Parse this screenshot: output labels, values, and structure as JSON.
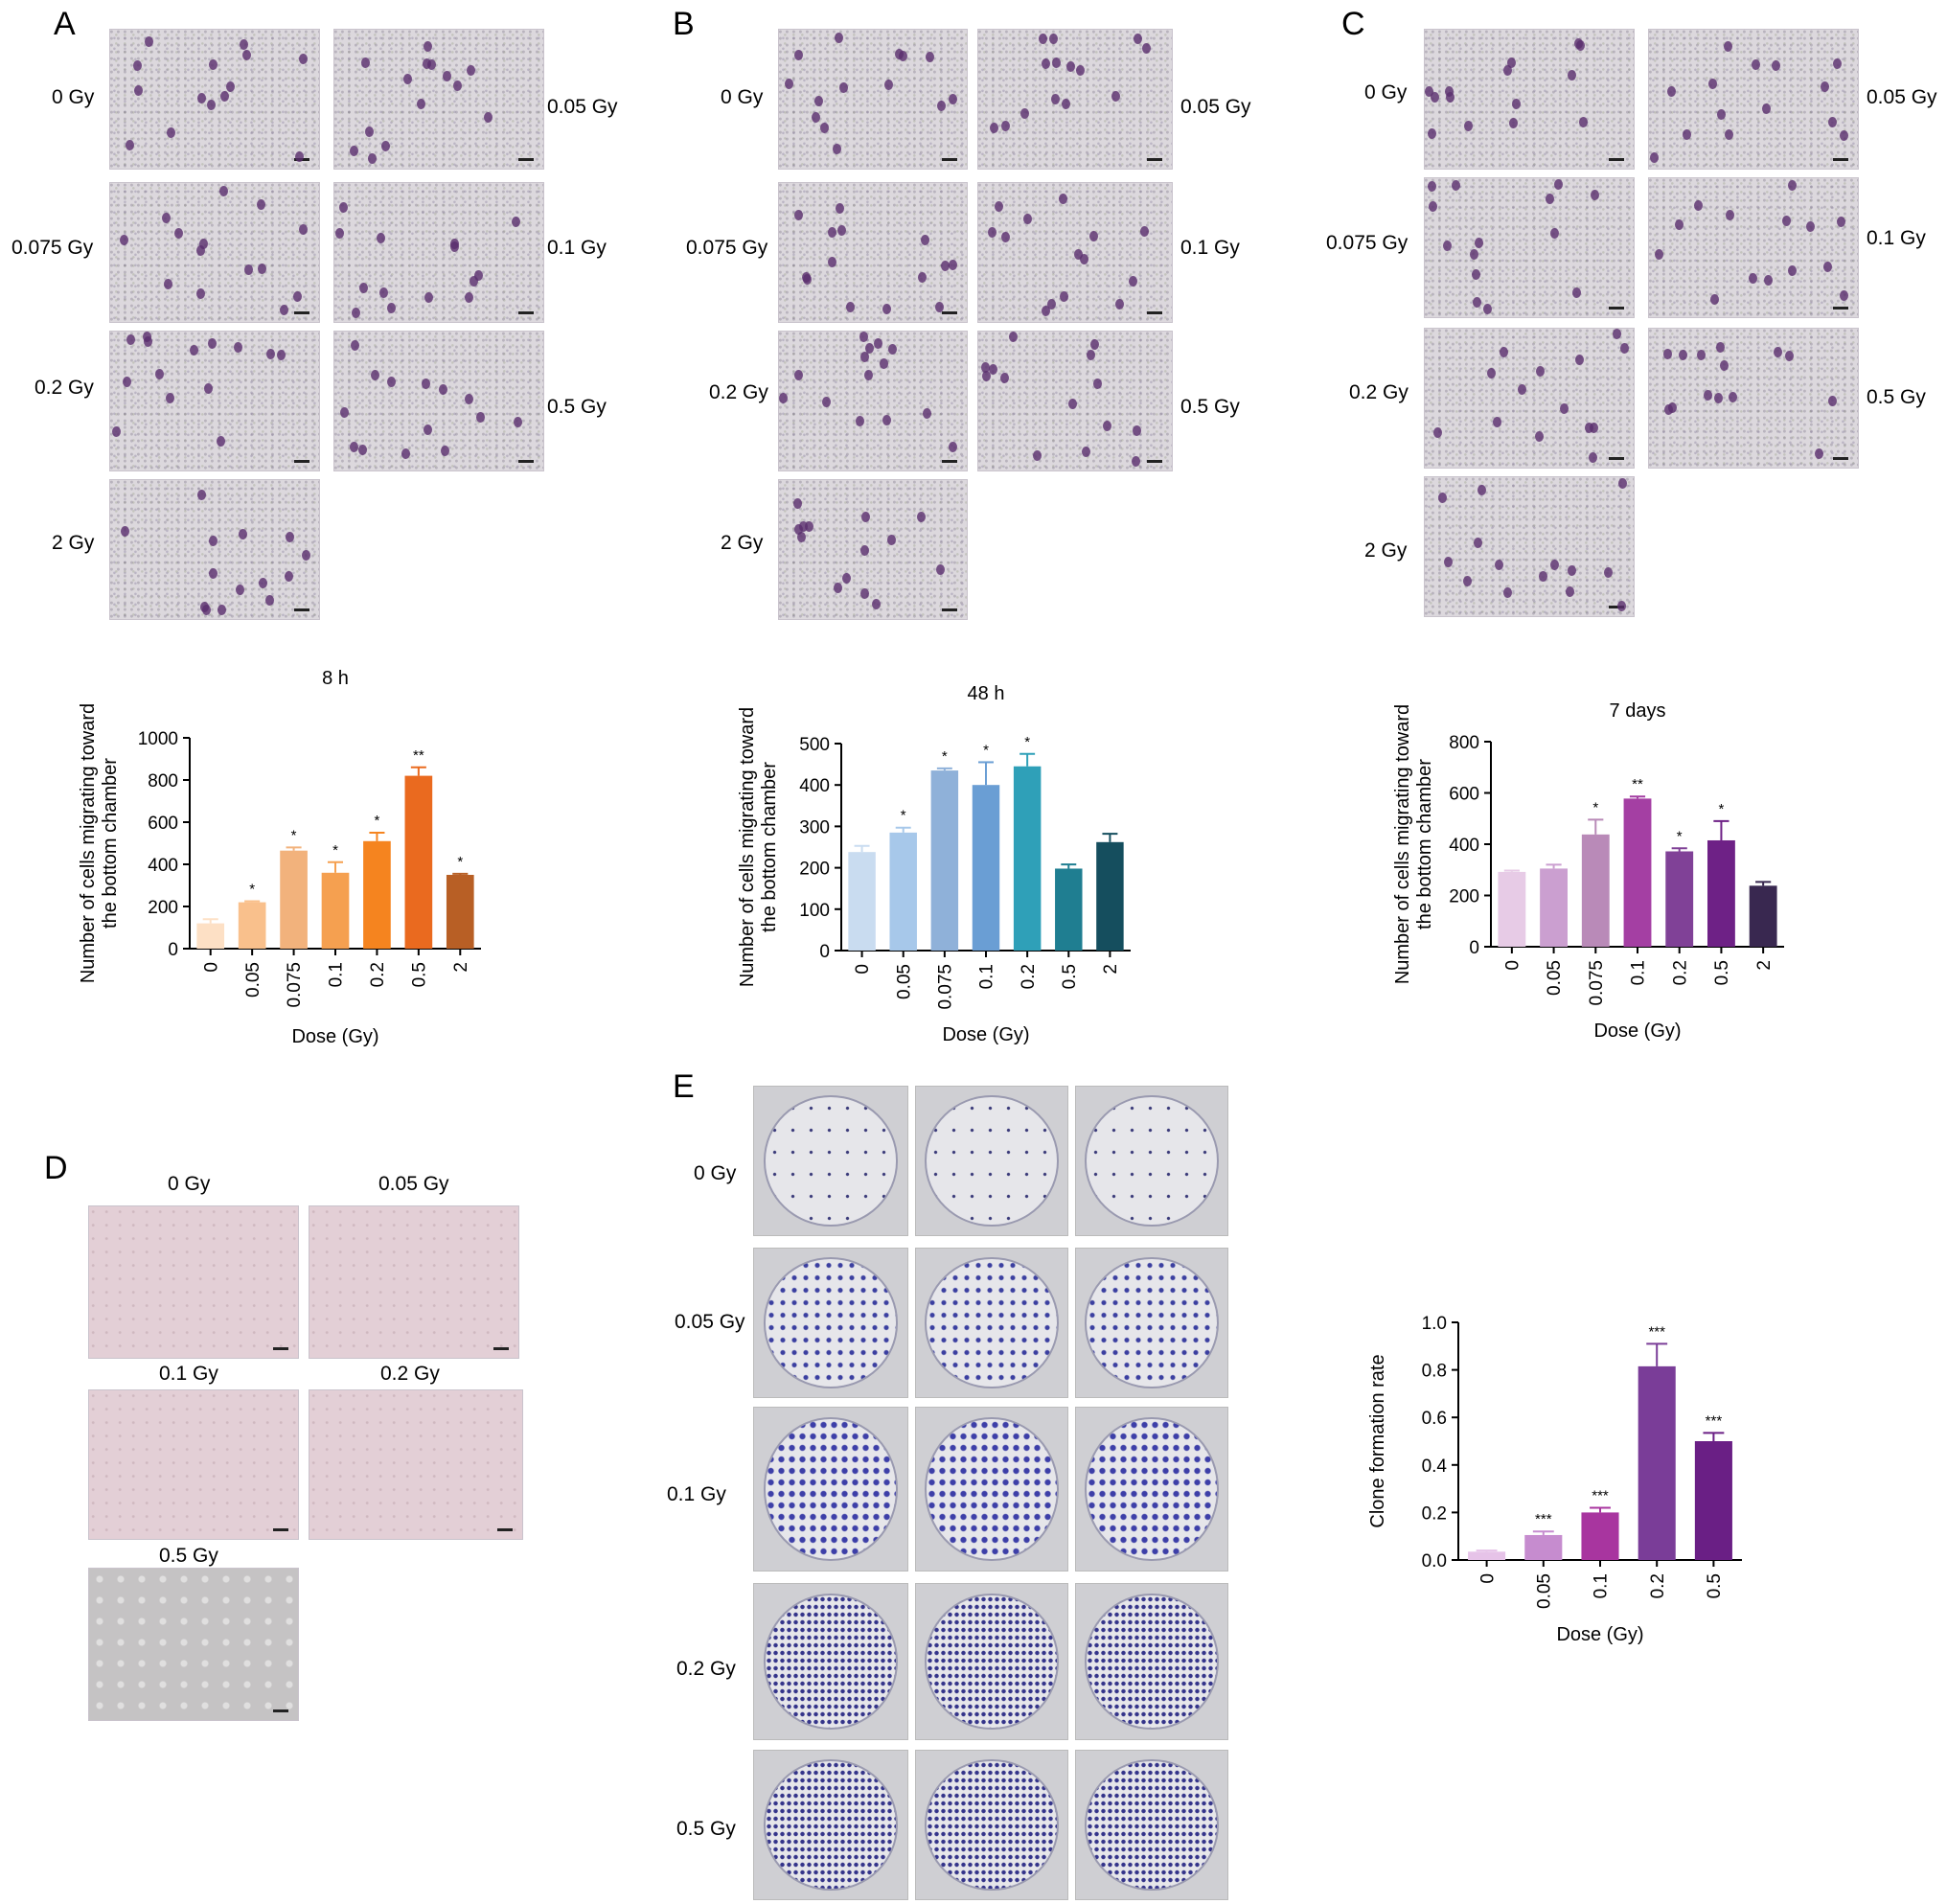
{
  "panels": {
    "A": {
      "letter": "A",
      "doses": [
        "0 Gy",
        "0.05 Gy",
        "0.075 Gy",
        "0.1 Gy",
        "0.2 Gy",
        "0.5 Gy",
        "2 Gy"
      ]
    },
    "B": {
      "letter": "B",
      "doses": [
        "0 Gy",
        "0.05 Gy",
        "0.075 Gy",
        "0.1 Gy",
        "0.2 Gy",
        "0.5 Gy",
        "2 Gy"
      ]
    },
    "C": {
      "letter": "C",
      "doses": [
        "0 Gy",
        "0.05 Gy",
        "0.075 Gy",
        "0.1 Gy",
        "0.2 Gy",
        "0.5 Gy",
        "2 Gy"
      ]
    },
    "D": {
      "letter": "D",
      "doses": [
        "0 Gy",
        "0.05 Gy",
        "0.1 Gy",
        "0.2 Gy",
        "0.5 Gy"
      ]
    },
    "E": {
      "letter": "E",
      "doses": [
        "0 Gy",
        "0.05 Gy",
        "0.1 Gy",
        "0.2 Gy",
        "0.5 Gy"
      ]
    }
  },
  "chart_data": [
    {
      "id": "A",
      "type": "bar",
      "title": "8 h",
      "xlabel": "Dose (Gy)",
      "ylabel": "Number of cells migrating toward the bottom chamber",
      "categories": [
        "0",
        "0.05",
        "0.075",
        "0.1",
        "0.2",
        "0.5",
        "2"
      ],
      "values": [
        120,
        220,
        465,
        360,
        510,
        820,
        350
      ],
      "errors": [
        20,
        5,
        15,
        50,
        40,
        40,
        5
      ],
      "significance": [
        "",
        "*",
        "*",
        "*",
        "*",
        "**",
        "*"
      ],
      "ylim": [
        0,
        1000
      ],
      "yticks": [
        0,
        200,
        400,
        600,
        800,
        1000
      ],
      "colors": [
        "#fde0c5",
        "#f9c08c",
        "#f2b27c",
        "#f5a050",
        "#f5841f",
        "#ea6a1f",
        "#b85f25"
      ]
    },
    {
      "id": "B",
      "type": "bar",
      "title": "48 h",
      "xlabel": "Dose (Gy)",
      "ylabel": "Number of cells migrating toward the bottom chamber",
      "categories": [
        "0",
        "0.05",
        "0.075",
        "0.1",
        "0.2",
        "0.5",
        "2"
      ],
      "values": [
        238,
        285,
        435,
        400,
        445,
        198,
        262
      ],
      "errors": [
        15,
        12,
        5,
        55,
        30,
        10,
        20
      ],
      "significance": [
        "",
        "*",
        "*",
        "*",
        "*",
        "",
        ""
      ],
      "ylim": [
        0,
        500
      ],
      "yticks": [
        0,
        100,
        200,
        300,
        400,
        500
      ],
      "colors": [
        "#c9dcf0",
        "#a7c8ea",
        "#8fb1d9",
        "#6a9ed4",
        "#2fa0b8",
        "#1f7e91",
        "#154e5e"
      ]
    },
    {
      "id": "C",
      "type": "bar",
      "title": "7 days",
      "xlabel": "Dose (Gy)",
      "ylabel": "Number of cells migrating toward the bottom chamber",
      "categories": [
        "0",
        "0.05",
        "0.075",
        "0.1",
        "0.2",
        "0.5",
        "2"
      ],
      "values": [
        292,
        305,
        438,
        578,
        372,
        415,
        238
      ],
      "errors": [
        5,
        15,
        58,
        8,
        12,
        75,
        15
      ],
      "significance": [
        "",
        "",
        "*",
        "**",
        "*",
        "*",
        ""
      ],
      "ylim": [
        0,
        800
      ],
      "yticks": [
        0,
        200,
        400,
        600,
        800
      ],
      "colors": [
        "#e7cbe6",
        "#cb9fd0",
        "#b98ab8",
        "#a43fa3",
        "#804197",
        "#6e2186",
        "#392850"
      ]
    },
    {
      "id": "E",
      "type": "bar",
      "title": "",
      "xlabel": "Dose (Gy)",
      "ylabel": "Clone formation rate",
      "categories": [
        "0",
        "0.05",
        "0.1",
        "0.2",
        "0.5"
      ],
      "values": [
        0.035,
        0.105,
        0.2,
        0.815,
        0.5
      ],
      "errors": [
        0.005,
        0.015,
        0.02,
        0.095,
        0.035
      ],
      "significance": [
        "",
        "***",
        "***",
        "***",
        "***"
      ],
      "ylim": [
        0,
        1.0
      ],
      "yticks": [
        "0.0",
        "0.2",
        "0.4",
        "0.6",
        "0.8",
        "1.0"
      ],
      "colors": [
        "#e6c3e8",
        "#c68ccf",
        "#a8359f",
        "#7a3d98",
        "#6a1f85"
      ]
    }
  ]
}
